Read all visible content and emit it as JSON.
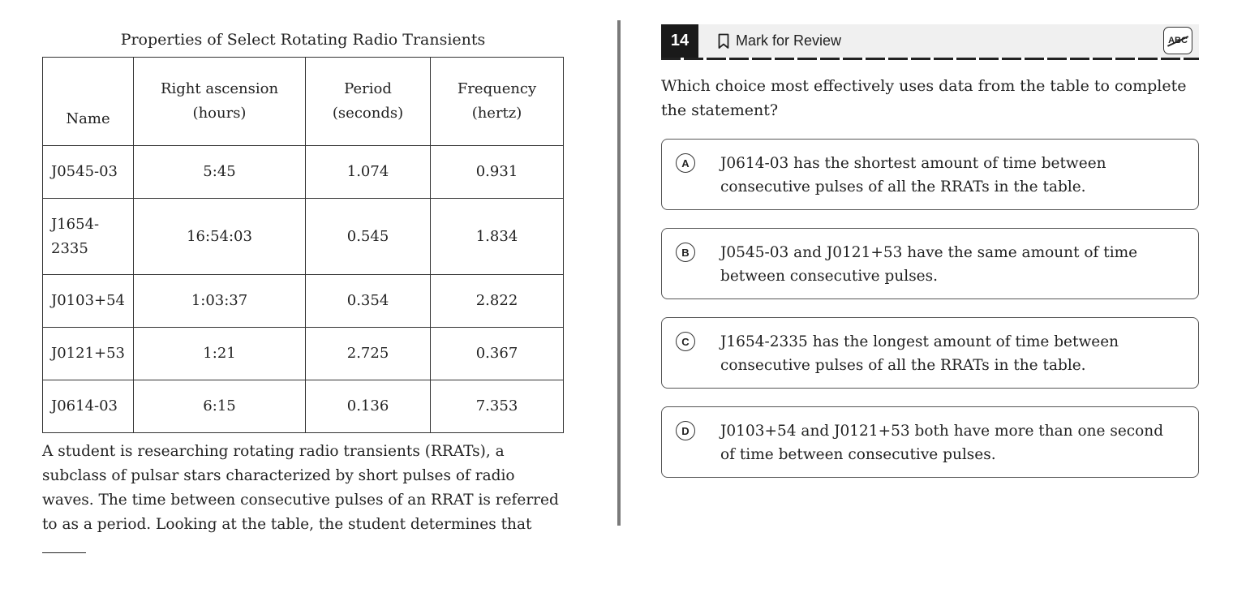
{
  "table": {
    "title": "Properties of Select Rotating Radio Transients",
    "headers": [
      {
        "line1": "Name",
        "line2": ""
      },
      {
        "line1": "Right ascension",
        "line2": "(hours)"
      },
      {
        "line1": "Period",
        "line2": "(seconds)"
      },
      {
        "line1": "Frequency",
        "line2": "(hertz)"
      }
    ],
    "rows": [
      [
        "J0545-03",
        "5:45",
        "1.074",
        "0.931"
      ],
      [
        "J1654-2335",
        "16:54:03",
        "0.545",
        "1.834"
      ],
      [
        "J0103+54",
        "1:03:37",
        "0.354",
        "2.822"
      ],
      [
        "J0121+53",
        "1:21",
        "2.725",
        "0.367"
      ],
      [
        "J0614-03",
        "6:15",
        "0.136",
        "7.353"
      ]
    ]
  },
  "passage": {
    "text": "A student is researching rotating radio transients (RRATs), a subclass of pulsar stars characterized by short pulses of radio waves. The time between consecutive pulses of an RRAT is referred to as a period. Looking at the table, the student determines that"
  },
  "header": {
    "question_number": "14",
    "mark_label": "Mark for Review",
    "abc_label": "ABC"
  },
  "question": {
    "prompt": "Which choice most effectively uses data from the table to complete the statement?",
    "choices": [
      {
        "letter": "A",
        "text": "J0614-03 has the shortest amount of time between consecutive pulses of all the RRATs in the table."
      },
      {
        "letter": "B",
        "text": "J0545-03 and J0121+53 have the same amount of time between consecutive pulses."
      },
      {
        "letter": "C",
        "text": "J1654-2335 has the longest amount of time between consecutive pulses of all the RRATs in the table."
      },
      {
        "letter": "D",
        "text": "J0103+54 and J0121+53 both have more than one second of time between consecutive pulses."
      }
    ]
  }
}
